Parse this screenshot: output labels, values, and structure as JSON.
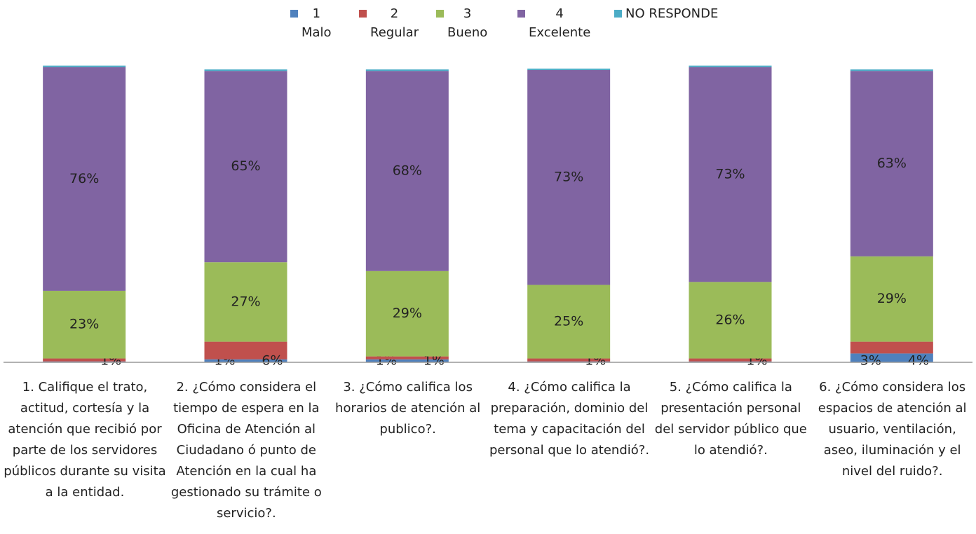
{
  "chart_data": {
    "type": "stacked-bar",
    "categories": [
      "1.  Califique el trato, actitud, cortesía y la atención que recibió por parte de los servidores públicos durante su visita a la entidad.",
      "2.  ¿Cómo considera el tiempo de espera en la Oficina de Atención al Ciudadano ó punto de Atención en la cual ha gestionado su trámite o servicio?.",
      "3.  ¿Cómo califica los horarios de atención al publico?.",
      "4.  ¿Cómo califica la preparación, dominio del tema y capacitación del personal que lo atendió?.",
      "5.  ¿Cómo califica la presentación personal del servidor público que lo atendió?.",
      "6.  ¿Cómo considera los espacios de atención al usuario, ventilación, aseo, iluminación y el nivel del ruido?."
    ],
    "series": [
      {
        "name": "1\nMalo",
        "color": "#4f81bd",
        "values": [
          0.3,
          1,
          1,
          0.3,
          0.3,
          3
        ],
        "value_labels": [
          null,
          "1%",
          "1%",
          null,
          null,
          "3%"
        ]
      },
      {
        "name": "2\nRegular",
        "color": "#c0504d",
        "values": [
          1,
          6,
          1,
          1,
          1,
          4
        ],
        "value_labels": [
          "1%",
          "6%",
          "1%",
          "1%",
          "1%",
          "4%"
        ]
      },
      {
        "name": "3\nBueno",
        "color": "#9bbb59",
        "values": [
          23,
          27,
          29,
          25,
          26,
          29
        ],
        "value_labels": [
          "23%",
          "27%",
          "29%",
          "25%",
          "26%",
          "29%"
        ]
      },
      {
        "name": "4\nExcelente",
        "color": "#8064a2",
        "values": [
          76,
          65,
          68,
          73,
          73,
          63
        ],
        "value_labels": [
          "76%",
          "65%",
          "68%",
          "73%",
          "73%",
          "63%"
        ]
      },
      {
        "name": "NO RESPONDE",
        "color": "#4bacc6",
        "values": [
          0.5,
          0.5,
          0.5,
          0.5,
          0.5,
          0.5
        ],
        "value_labels": [
          null,
          null,
          null,
          null,
          null,
          null
        ]
      }
    ],
    "ylim": [
      0,
      100
    ]
  }
}
